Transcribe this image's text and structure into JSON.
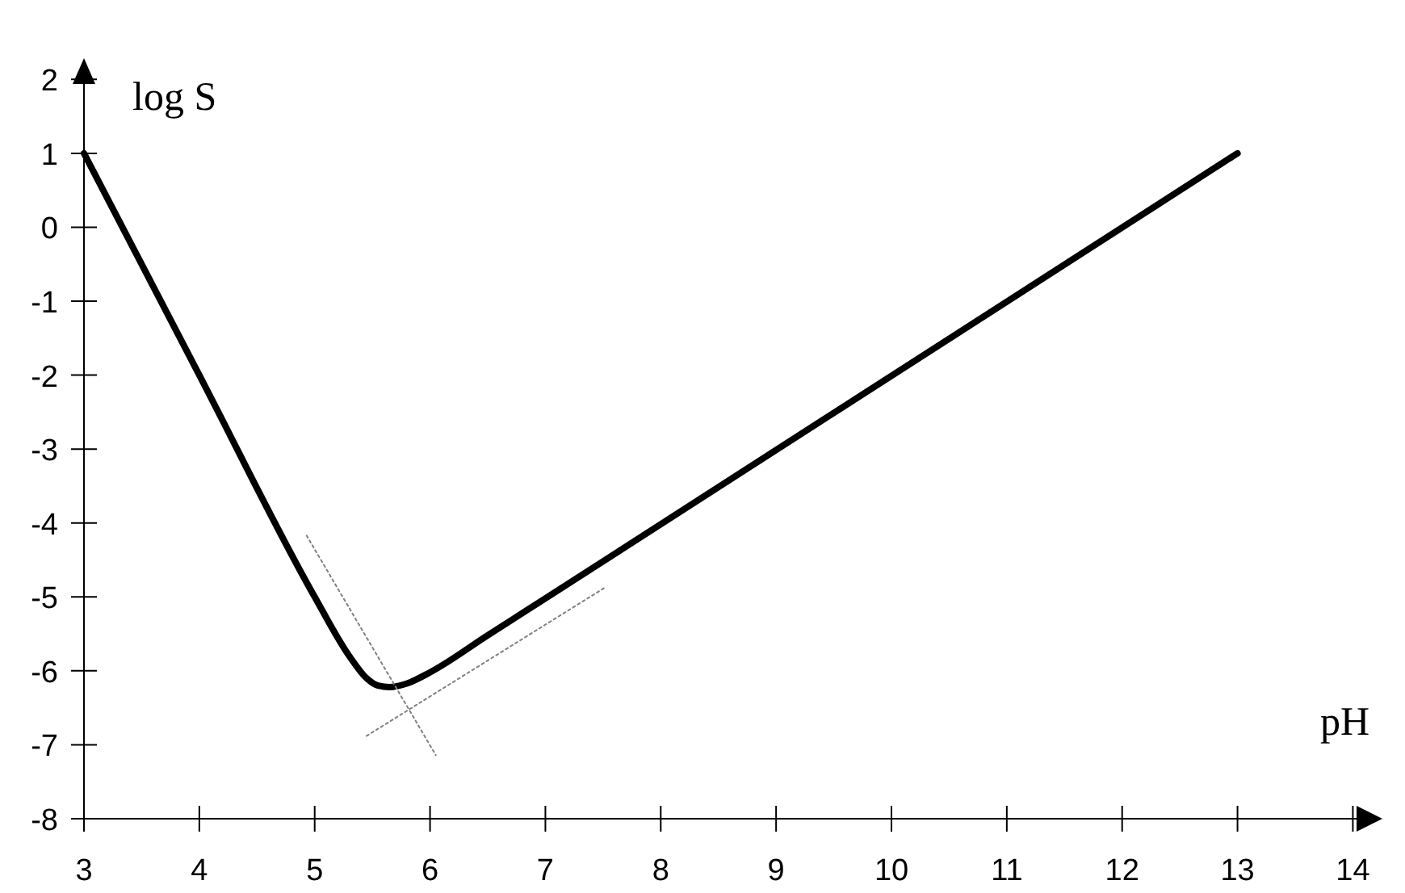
{
  "chart_data": {
    "type": "line",
    "xlabel": "pH",
    "ylabel": "log S",
    "xlim": [
      3,
      14.2
    ],
    "ylim": [
      -8,
      2.2
    ],
    "xticks": [
      3,
      4,
      5,
      6,
      7,
      8,
      9,
      10,
      11,
      12,
      13,
      14
    ],
    "yticks": [
      -8,
      -7,
      -6,
      -5,
      -4,
      -3,
      -2,
      -1,
      0,
      1,
      2
    ],
    "grid": false,
    "marker": "none",
    "series": [
      {
        "color": "#000000",
        "line_style": "solid",
        "x": [
          3,
          4,
          5,
          5.3,
          5.45,
          5.55,
          5.65,
          5.8,
          6,
          6.5,
          7,
          13
        ],
        "values": [
          1,
          -2,
          -5,
          -5.8,
          -6.1,
          -6.2,
          -6.22,
          -6.17,
          -6.02,
          -5.52,
          -5.02,
          1
        ]
      },
      {
        "color": "#808080",
        "line_style": "dotted",
        "x": [
          4.93,
          6.05
        ],
        "values": [
          -4.17,
          -7.14
        ]
      },
      {
        "color": "#808080",
        "line_style": "dotted",
        "x": [
          5.45,
          7.52
        ],
        "values": [
          -6.88,
          -4.87
        ]
      }
    ]
  }
}
